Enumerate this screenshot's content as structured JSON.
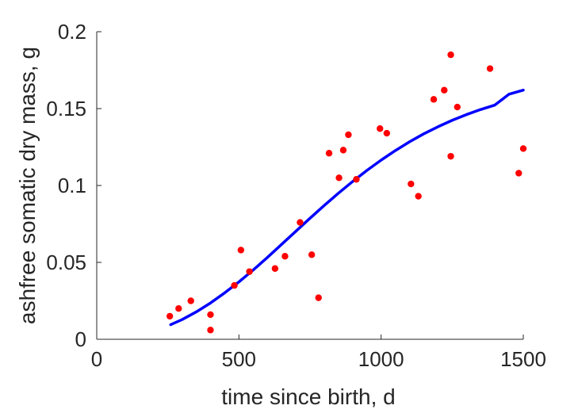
{
  "chart_data": {
    "type": "scatter",
    "xlabel": "time since birth, d",
    "ylabel": "ashfree somatic dry mass, g",
    "xlim": [
      0,
      1500
    ],
    "ylim": [
      0,
      0.2
    ],
    "xticks": [
      0,
      500,
      1000,
      1500
    ],
    "yticks": [
      0,
      0.05,
      0.1,
      0.15,
      0.2
    ],
    "xtick_labels": [
      "0",
      "500",
      "1000",
      "1500"
    ],
    "ytick_labels": [
      "0",
      "0.05",
      "0.1",
      "0.15",
      "0.2"
    ],
    "grid": false,
    "series": [
      {
        "kind": "scatter",
        "color": "#ff0000",
        "points": [
          [
            257,
            0.015
          ],
          [
            288,
            0.02
          ],
          [
            331,
            0.025
          ],
          [
            400,
            0.006
          ],
          [
            400,
            0.016
          ],
          [
            484,
            0.035
          ],
          [
            507,
            0.058
          ],
          [
            537,
            0.044
          ],
          [
            627,
            0.046
          ],
          [
            662,
            0.054
          ],
          [
            715,
            0.076
          ],
          [
            756,
            0.055
          ],
          [
            780,
            0.027
          ],
          [
            817,
            0.121
          ],
          [
            852,
            0.105
          ],
          [
            867,
            0.123
          ],
          [
            885,
            0.133
          ],
          [
            913,
            0.104
          ],
          [
            996,
            0.137
          ],
          [
            1020,
            0.134
          ],
          [
            1105,
            0.101
          ],
          [
            1131,
            0.093
          ],
          [
            1185,
            0.156
          ],
          [
            1222,
            0.162
          ],
          [
            1245,
            0.185
          ],
          [
            1245,
            0.119
          ],
          [
            1268,
            0.151
          ],
          [
            1383,
            0.176
          ],
          [
            1484,
            0.108
          ],
          [
            1500,
            0.124
          ]
        ]
      },
      {
        "kind": "line",
        "color": "#0000ff",
        "points": [
          [
            260,
            0.0095
          ],
          [
            300,
            0.0128
          ],
          [
            350,
            0.0178
          ],
          [
            400,
            0.0236
          ],
          [
            450,
            0.0302
          ],
          [
            500,
            0.0373
          ],
          [
            550,
            0.045
          ],
          [
            600,
            0.0532
          ],
          [
            650,
            0.0617
          ],
          [
            700,
            0.0702
          ],
          [
            750,
            0.0787
          ],
          [
            800,
            0.087
          ],
          [
            850,
            0.095
          ],
          [
            900,
            0.1026
          ],
          [
            950,
            0.1098
          ],
          [
            1000,
            0.1165
          ],
          [
            1050,
            0.1227
          ],
          [
            1100,
            0.1284
          ],
          [
            1150,
            0.1336
          ],
          [
            1200,
            0.1382
          ],
          [
            1250,
            0.1424
          ],
          [
            1300,
            0.1461
          ],
          [
            1350,
            0.1494
          ],
          [
            1400,
            0.1523
          ],
          [
            1450,
            0.1594
          ],
          [
            1500,
            0.162
          ]
        ]
      }
    ]
  }
}
